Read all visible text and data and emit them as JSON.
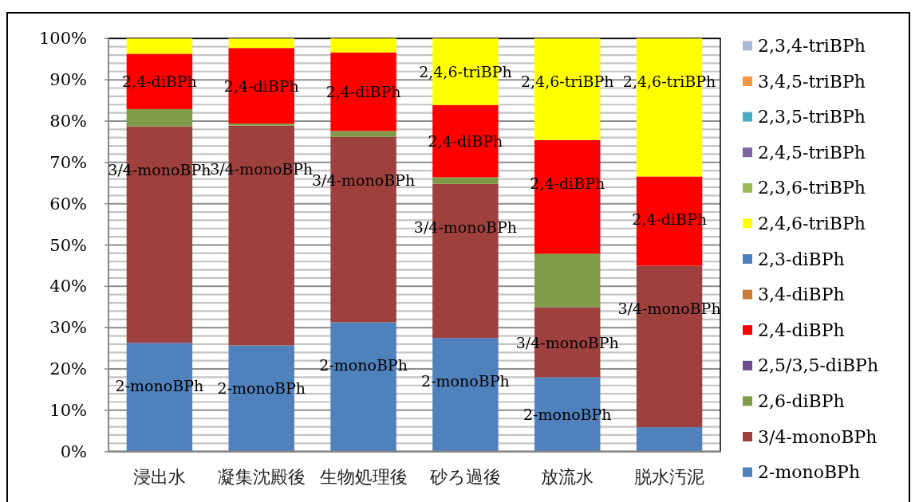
{
  "chart_data": {
    "type": "bar",
    "stacked": true,
    "categories": [
      "浸出水",
      "凝集沈殿後",
      "生物処理後",
      "砂ろ過後",
      "放流水",
      "脱水汚泥"
    ],
    "ylim": [
      0,
      100
    ],
    "yticks": [
      {
        "value": 0,
        "label": "0%"
      },
      {
        "value": 2,
        "label": null
      },
      {
        "value": 4,
        "label": null
      },
      {
        "value": 6,
        "label": null
      },
      {
        "value": 8,
        "label": null
      },
      {
        "value": 10,
        "label": "10%"
      },
      {
        "value": 12,
        "label": null
      },
      {
        "value": 14,
        "label": null
      },
      {
        "value": 16,
        "label": null
      },
      {
        "value": 18,
        "label": null
      },
      {
        "value": 20,
        "label": "20%"
      },
      {
        "value": 22,
        "label": null
      },
      {
        "value": 24,
        "label": null
      },
      {
        "value": 26,
        "label": null
      },
      {
        "value": 28,
        "label": null
      },
      {
        "value": 30,
        "label": "30%"
      },
      {
        "value": 32,
        "label": null
      },
      {
        "value": 34,
        "label": null
      },
      {
        "value": 36,
        "label": null
      },
      {
        "value": 38,
        "label": null
      },
      {
        "value": 40,
        "label": "40%"
      },
      {
        "value": 42,
        "label": null
      },
      {
        "value": 44,
        "label": null
      },
      {
        "value": 46,
        "label": null
      },
      {
        "value": 48,
        "label": null
      },
      {
        "value": 50,
        "label": "50%"
      },
      {
        "value": 52,
        "label": null
      },
      {
        "value": 54,
        "label": null
      },
      {
        "value": 56,
        "label": null
      },
      {
        "value": 58,
        "label": null
      },
      {
        "value": 60,
        "label": "60%"
      },
      {
        "value": 62,
        "label": null
      },
      {
        "value": 64,
        "label": null
      },
      {
        "value": 66,
        "label": null
      },
      {
        "value": 68,
        "label": null
      },
      {
        "value": 70,
        "label": "70%"
      },
      {
        "value": 72,
        "label": null
      },
      {
        "value": 74,
        "label": null
      },
      {
        "value": 76,
        "label": null
      },
      {
        "value": 78,
        "label": null
      },
      {
        "value": 80,
        "label": "80%"
      },
      {
        "value": 82,
        "label": null
      },
      {
        "value": 84,
        "label": null
      },
      {
        "value": 86,
        "label": null
      },
      {
        "value": 88,
        "label": null
      },
      {
        "value": 90,
        "label": "90%"
      },
      {
        "value": 92,
        "label": null
      },
      {
        "value": 94,
        "label": null
      },
      {
        "value": 96,
        "label": null
      },
      {
        "value": 98,
        "label": null
      },
      {
        "value": 100,
        "label": "100%"
      }
    ],
    "grid": "y",
    "legend": "right",
    "series": [
      {
        "name": "2-monoBPh",
        "color": "#4f81bd",
        "values": [
          26.3,
          25.7,
          31.3,
          27.5,
          18.0,
          5.9
        ]
      },
      {
        "name": "3/4-monoBPh",
        "color": "#9e413e",
        "values": [
          52.4,
          53.2,
          44.9,
          37.3,
          16.9,
          39.1
        ]
      },
      {
        "name": "2,6-diBPh",
        "color": "#7f9a48",
        "values": [
          4.2,
          0.5,
          1.4,
          1.6,
          13.0,
          0
        ]
      },
      {
        "name": "2,5/3,5-diBPh",
        "color": "#6a4f8c",
        "values": [
          0,
          0,
          0,
          0,
          0,
          0
        ]
      },
      {
        "name": "2,4-diBPh",
        "color": "#ff0000",
        "values": [
          13.4,
          18.3,
          19.0,
          17.5,
          27.5,
          21.6
        ]
      },
      {
        "name": "3,4-diBPh",
        "color": "#c77c3a",
        "values": [
          0,
          0,
          0,
          0,
          0,
          0
        ]
      },
      {
        "name": "2,3-diBPh",
        "color": "#4f81bd",
        "values": [
          0,
          0,
          0,
          0,
          0,
          0
        ]
      },
      {
        "name": "2,4,6-triBPh",
        "color": "#ffff00",
        "values": [
          3.7,
          2.3,
          3.4,
          16.1,
          24.6,
          33.4
        ]
      },
      {
        "name": "2,3,6-triBPh",
        "color": "#9bbb59",
        "values": [
          0,
          0,
          0,
          0,
          0,
          0
        ]
      },
      {
        "name": "2,4,5-triBPh",
        "color": "#8064a2",
        "values": [
          0,
          0,
          0,
          0,
          0,
          0
        ]
      },
      {
        "name": "2,3,5-triBPh",
        "color": "#4bacc6",
        "values": [
          0,
          0,
          0,
          0,
          0,
          0
        ]
      },
      {
        "name": "3,4,5-triBPh",
        "color": "#f79646",
        "values": [
          0,
          0,
          0,
          0,
          0,
          0
        ]
      },
      {
        "name": "2,3,4-triBPh",
        "color": "#aab9d6",
        "values": [
          0,
          0,
          0,
          0,
          0,
          0
        ]
      }
    ],
    "annotations": [
      {
        "text": "2,4-diBPh",
        "x": "浸出水",
        "y": 96.3
      },
      {
        "text": "3/4-monoBPh",
        "x": "浸出水",
        "y": 78.7
      },
      {
        "text": "2-monoBPh",
        "x": "浸出水",
        "y": 26.3
      },
      {
        "text": "2,4-diBPh",
        "x": "凝集沈殿後",
        "y": 97.7
      },
      {
        "text": "3/4-monoBPh",
        "x": "凝集沈殿後",
        "y": 78.9
      },
      {
        "text": "2-monoBPh",
        "x": "凝集沈殿後",
        "y": 25.7
      },
      {
        "text": "2,4-diBPh",
        "x": "生物処理後",
        "y": 96.6
      },
      {
        "text": "3/4-monoBPh",
        "x": "生物処理後",
        "y": 76.2
      },
      {
        "text": "2-monoBPh",
        "x": "生物処理後",
        "y": 31.3
      },
      {
        "text": "2,4,6-triBPh",
        "x": "砂ろ過後",
        "y": 100
      },
      {
        "text": "2,4-diBPh",
        "x": "砂ろ過後",
        "y": 83.9
      },
      {
        "text": "3/4-monoBPh",
        "x": "砂ろ過後",
        "y": 64.8
      },
      {
        "text": "2-monoBPh",
        "x": "砂ろ過後",
        "y": 27.5
      },
      {
        "text": "2,4,6-triBPh",
        "x": "放流水",
        "y": 100
      },
      {
        "text": "2,4-diBPh",
        "x": "放流水",
        "y": 75.4
      },
      {
        "text": "3/4-monoBPh",
        "x": "放流水",
        "y": 34.9
      },
      {
        "text": "2-monoBPh",
        "x": "放流水",
        "y": 18.0
      },
      {
        "text": "2,4,6-triBPh",
        "x": "脱水汚泥",
        "y": 100
      },
      {
        "text": "2,4-diBPh",
        "x": "脱水汚泥",
        "y": 66.6
      },
      {
        "text": "3/4-monoBPh",
        "x": "脱水汚泥",
        "y": 45.0
      }
    ]
  }
}
